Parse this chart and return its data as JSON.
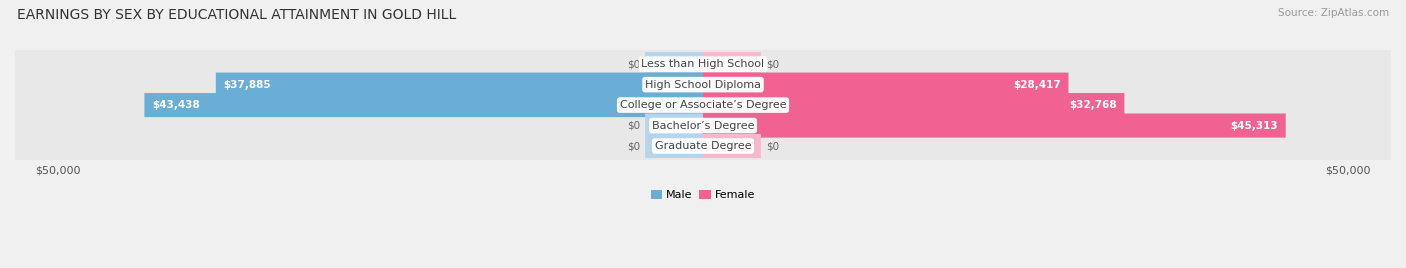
{
  "title": "EARNINGS BY SEX BY EDUCATIONAL ATTAINMENT IN GOLD HILL",
  "source": "Source: ZipAtlas.com",
  "categories": [
    "Less than High School",
    "High School Diploma",
    "College or Associate’s Degree",
    "Bachelor’s Degree",
    "Graduate Degree"
  ],
  "male_values": [
    0,
    37885,
    43438,
    0,
    0
  ],
  "female_values": [
    0,
    28417,
    32768,
    45313,
    0
  ],
  "male_color_strong": "#6aaed6",
  "male_color_light": "#b8d4ea",
  "female_color_strong": "#f06292",
  "female_color_light": "#f7b8ce",
  "max_val": 50000,
  "stub_val": 4500,
  "title_fontsize": 10,
  "label_fontsize": 8,
  "value_fontsize": 7.5,
  "tick_fontsize": 8,
  "source_fontsize": 7.5
}
